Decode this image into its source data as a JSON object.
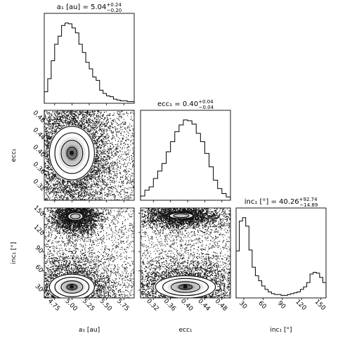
{
  "chart_data": {
    "type": "corner",
    "parameters": [
      {
        "key": "a1",
        "axis_label": "a₁ [au]",
        "title": {
          "prefix": "a₁ [au] = 5.04",
          "upper": "+0.24",
          "lower": "−0.20"
        },
        "range": [
          4.6,
          5.9
        ],
        "ticks": [
          {
            "value": 4.75,
            "label": "4.75"
          },
          {
            "value": 5.0,
            "label": "5.00"
          },
          {
            "value": 5.25,
            "label": "5.25"
          },
          {
            "value": 5.5,
            "label": "5.50"
          },
          {
            "value": 5.75,
            "label": "5.75"
          }
        ],
        "histogram": {
          "bin_edges": [
            4.6,
            4.65,
            4.7,
            4.75,
            4.8,
            4.85,
            4.9,
            4.95,
            5.0,
            5.05,
            5.1,
            5.15,
            5.2,
            5.25,
            5.3,
            5.35,
            5.4,
            5.45,
            5.5,
            5.55,
            5.6,
            5.65,
            5.7,
            5.75,
            5.8,
            5.85,
            5.9
          ],
          "counts": [
            14,
            30,
            52,
            72,
            82,
            95,
            98,
            97,
            92,
            86,
            72,
            62,
            50,
            42,
            32,
            28,
            16,
            12,
            9,
            8,
            5,
            4,
            3,
            3,
            2,
            2
          ]
        }
      },
      {
        "key": "ecc1",
        "axis_label": "ecc₁",
        "title": {
          "prefix": "ecc₁ = 0.40",
          "upper": "+0.04",
          "lower": "−0.04"
        },
        "range": [
          0.29,
          0.5
        ],
        "ticks": [
          {
            "value": 0.32,
            "label": "0.32"
          },
          {
            "value": 0.36,
            "label": "0.36"
          },
          {
            "value": 0.4,
            "label": "0.40"
          },
          {
            "value": 0.44,
            "label": "0.44"
          },
          {
            "value": 0.48,
            "label": "0.48"
          }
        ],
        "histogram": {
          "bin_edges": [
            0.29,
            0.3,
            0.31,
            0.32,
            0.33,
            0.34,
            0.35,
            0.36,
            0.37,
            0.38,
            0.39,
            0.4,
            0.41,
            0.42,
            0.43,
            0.44,
            0.45,
            0.46,
            0.47,
            0.48,
            0.49,
            0.5
          ],
          "counts": [
            5,
            12,
            16,
            26,
            35,
            44,
            58,
            70,
            82,
            90,
            96,
            95,
            91,
            80,
            70,
            56,
            40,
            24,
            14,
            8,
            4
          ]
        }
      },
      {
        "key": "inc1",
        "axis_label": "inc₁ [°]",
        "title": {
          "prefix": "inc₁ [°] = 40.26",
          "upper": "+92.74",
          "lower": "−14.89"
        },
        "range": [
          18,
          158
        ],
        "ticks": [
          {
            "value": 30,
            "label": "30"
          },
          {
            "value": 60,
            "label": "60"
          },
          {
            "value": 90,
            "label": "90"
          },
          {
            "value": 120,
            "label": "120"
          },
          {
            "value": 150,
            "label": "150"
          }
        ],
        "histogram": {
          "bin_edges": [
            18,
            23,
            28,
            33,
            38,
            43,
            48,
            53,
            58,
            63,
            68,
            73,
            78,
            83,
            88,
            93,
            98,
            103,
            108,
            113,
            118,
            123,
            128,
            133,
            138,
            143,
            148,
            153,
            158
          ],
          "counts": [
            55,
            90,
            94,
            84,
            56,
            36,
            26,
            20,
            14,
            10,
            7,
            5,
            4,
            4,
            3,
            3,
            4,
            5,
            6,
            7,
            10,
            13,
            18,
            28,
            30,
            29,
            24,
            18
          ]
        }
      }
    ],
    "joint_panels": [
      {
        "x": "a1",
        "y": "ecc1",
        "modes": [
          {
            "x_center": 5.0,
            "y_center": 0.4,
            "x_sigma": 0.13,
            "y_sigma": 0.025
          }
        ]
      },
      {
        "x": "a1",
        "y": "inc1",
        "modes": [
          {
            "x_center": 5.0,
            "y_center": 35,
            "x_sigma": 0.13,
            "y_sigma": 8
          },
          {
            "x_center": 5.05,
            "y_center": 145,
            "x_sigma": 0.07,
            "y_sigma": 4,
            "inner_level": false
          }
        ]
      },
      {
        "x": "ecc1",
        "y": "inc1",
        "modes": [
          {
            "x_center": 0.395,
            "y_center": 35,
            "x_sigma": 0.028,
            "y_sigma": 7
          },
          {
            "x_center": 0.385,
            "y_center": 146,
            "x_sigma": 0.018,
            "y_sigma": 3,
            "inner_level": false
          }
        ]
      }
    ],
    "grid": false,
    "legend": "none"
  }
}
